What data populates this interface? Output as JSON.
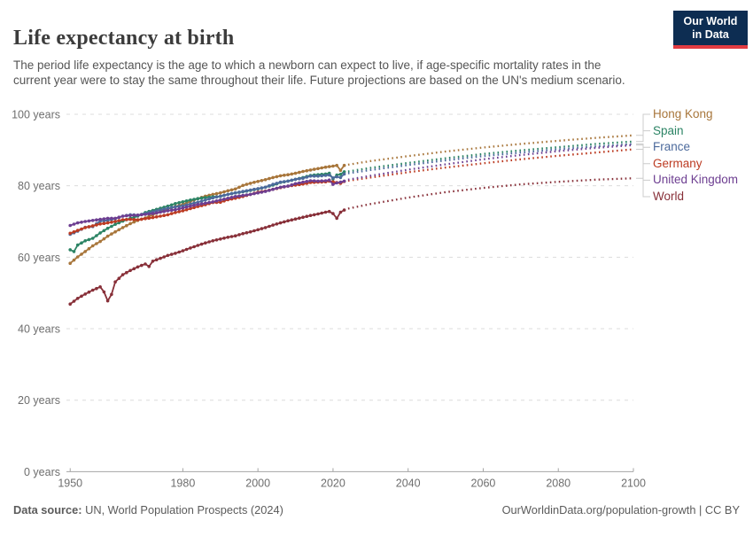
{
  "header": {
    "title": "Life expectancy at birth",
    "subtitle": "The period life expectancy is the age to which a newborn can expect to live, if age-specific mortality rates in the current year were to stay the same throughout their life. Future projections are based on the UN's medium scenario."
  },
  "logo": {
    "line1": "Our World",
    "line2": "in Data",
    "bg_color": "#0d2d52",
    "accent_color": "#e23b41"
  },
  "footer": {
    "source_label": "Data source:",
    "source_text": " UN, World Population Prospects (2024)",
    "link_text": "OurWorldinData.org/population-growth | CC BY"
  },
  "chart_data": {
    "type": "line",
    "title": "Life expectancy at birth",
    "xlabel": "",
    "ylabel": "",
    "x_range": [
      1949,
      2100
    ],
    "ylim": [
      0,
      100
    ],
    "x_ticks": [
      1950,
      1980,
      2000,
      2020,
      2040,
      2060,
      2080,
      2100
    ],
    "y_ticks": [
      0,
      20,
      40,
      60,
      80,
      100
    ],
    "y_tick_suffix": " years",
    "grid": "horizontal-dashed",
    "legend_position": "right",
    "history_style": "solid line with dot markers (1950-2023)",
    "projection_style": "dotted line (2024-2100, UN medium scenario)",
    "series": [
      {
        "name": "Hong Kong",
        "color": "#A8763B",
        "history": [
          [
            1950,
            58.3
          ],
          [
            1952,
            60.1
          ],
          [
            1954,
            61.6
          ],
          [
            1956,
            63.2
          ],
          [
            1958,
            64.4
          ],
          [
            1960,
            65.9
          ],
          [
            1962,
            67.1
          ],
          [
            1964,
            68.3
          ],
          [
            1966,
            69.4
          ],
          [
            1968,
            70.3
          ],
          [
            1970,
            71.0
          ],
          [
            1972,
            71.9
          ],
          [
            1974,
            72.7
          ],
          [
            1976,
            73.5
          ],
          [
            1978,
            74.2
          ],
          [
            1980,
            74.8
          ],
          [
            1982,
            75.6
          ],
          [
            1984,
            76.4
          ],
          [
            1986,
            77.1
          ],
          [
            1988,
            77.6
          ],
          [
            1990,
            78.0
          ],
          [
            1992,
            78.6
          ],
          [
            1994,
            79.1
          ],
          [
            1996,
            80.1
          ],
          [
            1998,
            80.7
          ],
          [
            2000,
            81.2
          ],
          [
            2002,
            81.7
          ],
          [
            2004,
            82.3
          ],
          [
            2006,
            82.8
          ],
          [
            2008,
            83.1
          ],
          [
            2010,
            83.5
          ],
          [
            2012,
            84.0
          ],
          [
            2014,
            84.4
          ],
          [
            2016,
            84.8
          ],
          [
            2018,
            85.2
          ],
          [
            2020,
            85.5
          ],
          [
            2021,
            85.7
          ],
          [
            2022,
            84.3
          ],
          [
            2023,
            85.7
          ]
        ],
        "projection": [
          [
            2024,
            85.9
          ],
          [
            2030,
            86.9
          ],
          [
            2040,
            88.3
          ],
          [
            2050,
            89.6
          ],
          [
            2060,
            90.7
          ],
          [
            2070,
            91.7
          ],
          [
            2080,
            92.6
          ],
          [
            2090,
            93.4
          ],
          [
            2100,
            94.1
          ]
        ]
      },
      {
        "name": "Spain",
        "color": "#2C8465",
        "history": [
          [
            1950,
            62.1
          ],
          [
            1951,
            61.6
          ],
          [
            1952,
            63.4
          ],
          [
            1954,
            64.6
          ],
          [
            1956,
            65.3
          ],
          [
            1958,
            66.8
          ],
          [
            1960,
            68.1
          ],
          [
            1962,
            69.2
          ],
          [
            1964,
            70.1
          ],
          [
            1966,
            70.9
          ],
          [
            1968,
            71.5
          ],
          [
            1970,
            72.5
          ],
          [
            1972,
            73.1
          ],
          [
            1974,
            73.7
          ],
          [
            1976,
            74.3
          ],
          [
            1978,
            75.0
          ],
          [
            1980,
            75.5
          ],
          [
            1982,
            76.0
          ],
          [
            1984,
            76.4
          ],
          [
            1986,
            76.7
          ],
          [
            1988,
            76.9
          ],
          [
            1990,
            77.0
          ],
          [
            1992,
            77.6
          ],
          [
            1994,
            78.0
          ],
          [
            1996,
            78.3
          ],
          [
            1998,
            78.7
          ],
          [
            2000,
            79.1
          ],
          [
            2002,
            79.6
          ],
          [
            2004,
            80.2
          ],
          [
            2006,
            80.9
          ],
          [
            2008,
            81.3
          ],
          [
            2010,
            81.8
          ],
          [
            2012,
            82.3
          ],
          [
            2014,
            82.9
          ],
          [
            2016,
            83.1
          ],
          [
            2018,
            83.3
          ],
          [
            2019,
            83.5
          ],
          [
            2020,
            81.9
          ],
          [
            2021,
            83.0
          ],
          [
            2022,
            83.2
          ],
          [
            2023,
            83.9
          ]
        ],
        "projection": [
          [
            2024,
            84.0
          ],
          [
            2030,
            85.0
          ],
          [
            2040,
            86.4
          ],
          [
            2050,
            87.7
          ],
          [
            2060,
            88.9
          ],
          [
            2070,
            89.9
          ],
          [
            2080,
            90.8
          ],
          [
            2090,
            91.7
          ],
          [
            2100,
            92.4
          ]
        ]
      },
      {
        "name": "France",
        "color": "#4C6A9C",
        "history": [
          [
            1950,
            66.4
          ],
          [
            1952,
            67.3
          ],
          [
            1954,
            68.4
          ],
          [
            1956,
            68.6
          ],
          [
            1958,
            70.1
          ],
          [
            1960,
            70.3
          ],
          [
            1962,
            70.8
          ],
          [
            1964,
            71.5
          ],
          [
            1966,
            71.9
          ],
          [
            1968,
            71.8
          ],
          [
            1970,
            72.2
          ],
          [
            1972,
            72.7
          ],
          [
            1974,
            73.2
          ],
          [
            1976,
            73.7
          ],
          [
            1978,
            74.1
          ],
          [
            1980,
            74.4
          ],
          [
            1982,
            74.9
          ],
          [
            1984,
            75.4
          ],
          [
            1986,
            76.0
          ],
          [
            1988,
            76.6
          ],
          [
            1990,
            77.1
          ],
          [
            1992,
            77.6
          ],
          [
            1994,
            78.0
          ],
          [
            1996,
            78.4
          ],
          [
            1998,
            78.8
          ],
          [
            2000,
            79.2
          ],
          [
            2002,
            79.6
          ],
          [
            2004,
            80.4
          ],
          [
            2006,
            81.0
          ],
          [
            2008,
            81.3
          ],
          [
            2010,
            81.8
          ],
          [
            2012,
            82.1
          ],
          [
            2014,
            82.7
          ],
          [
            2016,
            82.7
          ],
          [
            2018,
            82.9
          ],
          [
            2019,
            83.0
          ],
          [
            2020,
            82.2
          ],
          [
            2021,
            82.5
          ],
          [
            2022,
            82.3
          ],
          [
            2023,
            83.3
          ]
        ],
        "projection": [
          [
            2024,
            83.5
          ],
          [
            2030,
            84.4
          ],
          [
            2040,
            85.8
          ],
          [
            2050,
            87.1
          ],
          [
            2060,
            88.3
          ],
          [
            2070,
            89.3
          ],
          [
            2080,
            90.2
          ],
          [
            2090,
            91.0
          ],
          [
            2100,
            91.7
          ]
        ]
      },
      {
        "name": "Germany",
        "color": "#BC3B22",
        "history": [
          [
            1950,
            66.7
          ],
          [
            1952,
            67.5
          ],
          [
            1954,
            68.3
          ],
          [
            1956,
            68.8
          ],
          [
            1958,
            69.3
          ],
          [
            1960,
            69.6
          ],
          [
            1962,
            70.0
          ],
          [
            1964,
            70.5
          ],
          [
            1966,
            70.6
          ],
          [
            1968,
            70.5
          ],
          [
            1970,
            70.8
          ],
          [
            1972,
            71.1
          ],
          [
            1974,
            71.5
          ],
          [
            1976,
            71.9
          ],
          [
            1978,
            72.5
          ],
          [
            1980,
            73.0
          ],
          [
            1982,
            73.6
          ],
          [
            1984,
            74.2
          ],
          [
            1986,
            74.7
          ],
          [
            1988,
            75.3
          ],
          [
            1990,
            75.4
          ],
          [
            1992,
            76.1
          ],
          [
            1994,
            76.5
          ],
          [
            1996,
            77.0
          ],
          [
            1998,
            77.6
          ],
          [
            2000,
            78.2
          ],
          [
            2002,
            78.5
          ],
          [
            2004,
            79.0
          ],
          [
            2006,
            79.5
          ],
          [
            2008,
            79.9
          ],
          [
            2010,
            80.2
          ],
          [
            2012,
            80.5
          ],
          [
            2014,
            80.9
          ],
          [
            2016,
            81.0
          ],
          [
            2018,
            81.1
          ],
          [
            2019,
            81.3
          ],
          [
            2020,
            81.1
          ],
          [
            2021,
            80.9
          ],
          [
            2022,
            80.7
          ],
          [
            2023,
            81.2
          ]
        ],
        "projection": [
          [
            2024,
            81.4
          ],
          [
            2030,
            82.3
          ],
          [
            2040,
            83.8
          ],
          [
            2050,
            85.1
          ],
          [
            2060,
            86.3
          ],
          [
            2070,
            87.4
          ],
          [
            2080,
            88.4
          ],
          [
            2090,
            89.3
          ],
          [
            2100,
            90.2
          ]
        ]
      },
      {
        "name": "United Kingdom",
        "color": "#6D3E91",
        "history": [
          [
            1950,
            68.9
          ],
          [
            1952,
            69.6
          ],
          [
            1954,
            70.0
          ],
          [
            1956,
            70.3
          ],
          [
            1958,
            70.6
          ],
          [
            1960,
            70.9
          ],
          [
            1962,
            70.9
          ],
          [
            1964,
            71.5
          ],
          [
            1966,
            71.7
          ],
          [
            1968,
            71.8
          ],
          [
            1970,
            72.0
          ],
          [
            1972,
            72.2
          ],
          [
            1974,
            72.6
          ],
          [
            1976,
            73.0
          ],
          [
            1978,
            73.3
          ],
          [
            1980,
            73.8
          ],
          [
            1982,
            74.3
          ],
          [
            1984,
            74.8
          ],
          [
            1986,
            75.1
          ],
          [
            1988,
            75.5
          ],
          [
            1990,
            76.0
          ],
          [
            1992,
            76.5
          ],
          [
            1994,
            77.0
          ],
          [
            1996,
            77.3
          ],
          [
            1998,
            77.6
          ],
          [
            2000,
            78.0
          ],
          [
            2002,
            78.4
          ],
          [
            2004,
            79.0
          ],
          [
            2006,
            79.6
          ],
          [
            2008,
            79.9
          ],
          [
            2010,
            80.6
          ],
          [
            2012,
            81.0
          ],
          [
            2014,
            81.4
          ],
          [
            2016,
            81.3
          ],
          [
            2018,
            81.4
          ],
          [
            2019,
            81.6
          ],
          [
            2020,
            80.4
          ],
          [
            2021,
            80.8
          ],
          [
            2022,
            81.0
          ],
          [
            2023,
            81.3
          ]
        ],
        "projection": [
          [
            2024,
            81.7
          ],
          [
            2030,
            82.8
          ],
          [
            2040,
            84.5
          ],
          [
            2050,
            86.0
          ],
          [
            2060,
            87.4
          ],
          [
            2070,
            88.6
          ],
          [
            2080,
            89.7
          ],
          [
            2090,
            90.6
          ],
          [
            2100,
            91.4
          ]
        ]
      },
      {
        "name": "World",
        "color": "#883039",
        "history": [
          [
            1950,
            46.9
          ],
          [
            1952,
            48.5
          ],
          [
            1954,
            49.7
          ],
          [
            1956,
            50.8
          ],
          [
            1958,
            51.7
          ],
          [
            1959,
            50.3
          ],
          [
            1960,
            47.8
          ],
          [
            1961,
            49.6
          ],
          [
            1962,
            53.1
          ],
          [
            1964,
            55.1
          ],
          [
            1966,
            56.3
          ],
          [
            1968,
            57.3
          ],
          [
            1970,
            58.1
          ],
          [
            1971,
            57.4
          ],
          [
            1972,
            58.9
          ],
          [
            1974,
            59.7
          ],
          [
            1976,
            60.5
          ],
          [
            1978,
            61.1
          ],
          [
            1980,
            61.8
          ],
          [
            1982,
            62.6
          ],
          [
            1984,
            63.3
          ],
          [
            1986,
            64.0
          ],
          [
            1988,
            64.6
          ],
          [
            1990,
            65.1
          ],
          [
            1992,
            65.6
          ],
          [
            1994,
            66.0
          ],
          [
            1996,
            66.6
          ],
          [
            1998,
            67.1
          ],
          [
            2000,
            67.7
          ],
          [
            2002,
            68.3
          ],
          [
            2004,
            69.0
          ],
          [
            2006,
            69.6
          ],
          [
            2008,
            70.2
          ],
          [
            2010,
            70.7
          ],
          [
            2012,
            71.2
          ],
          [
            2014,
            71.7
          ],
          [
            2016,
            72.1
          ],
          [
            2018,
            72.6
          ],
          [
            2019,
            72.8
          ],
          [
            2020,
            72.2
          ],
          [
            2021,
            70.9
          ],
          [
            2022,
            72.6
          ],
          [
            2023,
            73.2
          ]
        ],
        "projection": [
          [
            2024,
            73.6
          ],
          [
            2030,
            74.9
          ],
          [
            2040,
            76.7
          ],
          [
            2050,
            78.2
          ],
          [
            2060,
            79.4
          ],
          [
            2070,
            80.4
          ],
          [
            2080,
            81.1
          ],
          [
            2090,
            81.7
          ],
          [
            2100,
            82.1
          ]
        ]
      }
    ]
  }
}
